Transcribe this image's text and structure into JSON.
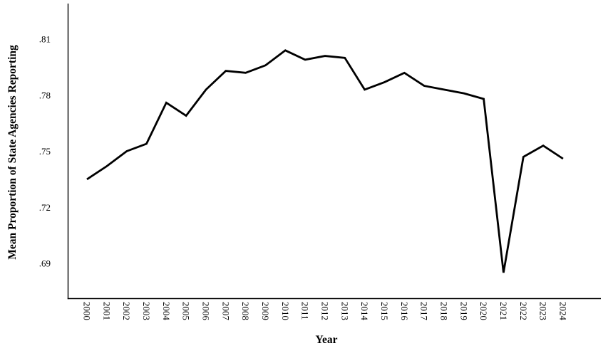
{
  "chart_data": {
    "type": "line",
    "title": "",
    "xlabel": "Year",
    "ylabel": "Mean Proportion of State Agencies Reporting",
    "x": [
      2000,
      2001,
      2002,
      2003,
      2004,
      2005,
      2006,
      2007,
      2008,
      2009,
      2010,
      2011,
      2012,
      2013,
      2014,
      2015,
      2016,
      2017,
      2018,
      2019,
      2020,
      2021,
      2022,
      2023,
      2024
    ],
    "x_tick_labels": [
      "2000",
      "2001",
      "2002",
      "2003",
      "2004",
      "2005",
      "2006",
      "2007",
      "2008",
      "2009",
      "2010",
      "2011",
      "2012",
      "2013",
      "2014",
      "2015",
      "2016",
      "2017",
      "2018",
      "2019",
      "2020",
      "2021",
      "2022",
      "2023",
      "2024"
    ],
    "values": [
      0.735,
      0.742,
      0.75,
      0.754,
      0.776,
      0.769,
      0.783,
      0.793,
      0.792,
      0.796,
      0.804,
      0.799,
      0.801,
      0.8,
      0.783,
      0.787,
      0.792,
      0.785,
      0.783,
      0.781,
      0.778,
      0.685,
      0.747,
      0.753,
      0.746
    ],
    "y_ticks": [
      0.69,
      0.72,
      0.75,
      0.78,
      0.81
    ],
    "y_tick_labels": [
      ".69",
      ".72",
      ".75",
      ".78",
      ".81"
    ],
    "ylim": [
      0.671,
      0.828
    ],
    "grid": false,
    "legend": "none",
    "line_color": "#000000",
    "axis_color": "#000000",
    "background_color": "#ffffff"
  }
}
